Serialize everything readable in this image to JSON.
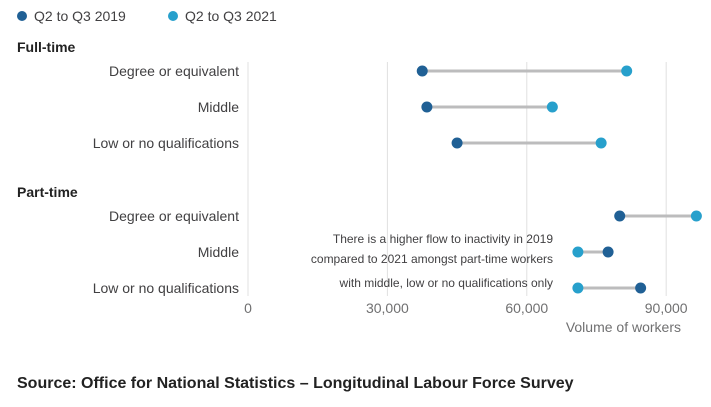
{
  "colors": {
    "q2q3_2019": "#206095",
    "q2q3_2021": "#27a0cc",
    "connector": "#bcbcbd",
    "grid": "#e0e0e0"
  },
  "chart_data": {
    "type": "dumbbell",
    "legend": [
      {
        "name": "Q2 to Q3 2019",
        "color": "#206095"
      },
      {
        "name": "Q2 to Q3 2021",
        "color": "#27a0cc"
      }
    ],
    "groups": [
      {
        "name": "Full-time",
        "rows": [
          {
            "label": "Degree or equivalent",
            "q2q3_2019": 37500,
            "q2q3_2021": 81500
          },
          {
            "label": "Middle",
            "q2q3_2019": 38500,
            "q2q3_2021": 65500
          },
          {
            "label": "Low or no qualifications",
            "q2q3_2019": 45000,
            "q2q3_2021": 76000
          }
        ]
      },
      {
        "name": "Part-time",
        "rows": [
          {
            "label": "Degree or equivalent",
            "q2q3_2019": 80000,
            "q2q3_2021": 96500
          },
          {
            "label": "Middle",
            "q2q3_2019": 77500,
            "q2q3_2021": 71000
          },
          {
            "label": "Low or no qualifications",
            "q2q3_2019": 84500,
            "q2q3_2021": 71000
          }
        ]
      }
    ],
    "xaxis": {
      "ticks": [
        0,
        30000,
        60000,
        90000
      ],
      "tick_labels": [
        "0",
        "30,000",
        "60,000",
        "90,000"
      ],
      "range": [
        0,
        99000
      ],
      "title": "Volume of workers"
    },
    "annotation": [
      "There is a higher flow to inactivity in 2019",
      "compared to 2021 amongst part-time workers",
      "with middle, low or no qualifications only"
    ]
  },
  "source": "Source: Office for National Statistics – Longitudinal Labour Force Survey"
}
